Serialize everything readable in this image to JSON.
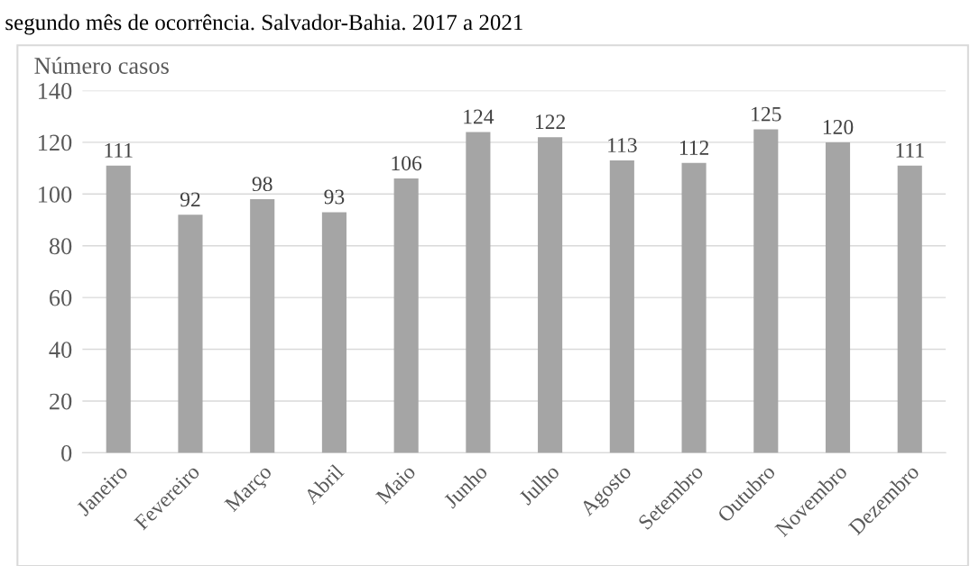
{
  "chart_data": {
    "type": "bar",
    "title": "segundo mês de ocorrência. Salvador-Bahia. 2017 a 2021",
    "ylabel": "Número casos",
    "categories": [
      "Janeiro",
      "Fevereiro",
      "Março",
      "Abril",
      "Maio",
      "Junho",
      "Julho",
      "Agosto",
      "Setembro",
      "Outubro",
      "Novembro",
      "Dezembro"
    ],
    "values": [
      111,
      92,
      98,
      93,
      106,
      124,
      122,
      113,
      112,
      125,
      120,
      111
    ],
    "color": "#a5a5a5",
    "ylim": [
      0,
      140
    ],
    "yticks": [
      0,
      20,
      40,
      60,
      80,
      100,
      120,
      140
    ],
    "grid": "y",
    "data_labels": true
  }
}
